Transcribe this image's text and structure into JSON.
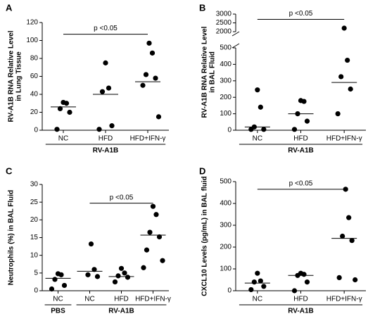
{
  "chart_data": [
    {
      "type": "strip",
      "letter": "A",
      "ylabel": [
        "RV-A1B RNA Relative Level",
        "in Lung Tissue"
      ],
      "categories": [
        "NC",
        "HFD",
        "HFD+IFN-γ"
      ],
      "groups": [
        {
          "label": "RV-A1B",
          "from": 0,
          "to": 2
        }
      ],
      "points": [
        [
          31,
          30,
          24,
          20,
          1
        ],
        [
          75,
          47,
          43,
          5,
          1
        ],
        [
          97,
          86,
          62,
          58,
          50,
          15
        ]
      ],
      "medians": [
        26,
        40,
        54
      ],
      "ylim": [
        0,
        120
      ],
      "yticks": [
        0,
        20,
        40,
        60,
        80,
        100,
        120
      ],
      "annotation": {
        "text": "p <0.05",
        "from": 0,
        "to": 2,
        "y": 107
      },
      "color": "#000000"
    },
    {
      "type": "strip",
      "letter": "B",
      "ylabel": [
        "RV-A1B RNA Relative Level",
        "in BAL Fluid"
      ],
      "categories": [
        "NC",
        "HFD",
        "HFD+IFN-γ"
      ],
      "groups": [
        {
          "label": "RV-A1B",
          "from": 0,
          "to": 2
        }
      ],
      "points": [
        [
          245,
          140,
          20,
          5,
          5
        ],
        [
          180,
          175,
          100,
          55,
          5
        ],
        [
          2200,
          425,
          325,
          250,
          100
        ]
      ],
      "medians": [
        20,
        100,
        290
      ],
      "ylim": [
        0,
        500
      ],
      "yticks": [
        0,
        100,
        200,
        300,
        400,
        500
      ],
      "ybreak": {
        "ylim": [
          2000,
          3000
        ],
        "yticks": [
          2000,
          2500,
          3000
        ]
      },
      "annotation": {
        "text": "p <0.05",
        "from": 0,
        "to": 2,
        "y": 2700
      },
      "color": "#000000"
    },
    {
      "type": "strip",
      "letter": "C",
      "ylabel": [
        "Neutrophils (%) in BAL Fluid"
      ],
      "categories": [
        "NC",
        "NC",
        "HFD",
        "HFD+IFN-γ"
      ],
      "groups": [
        {
          "label": "PBS",
          "from": 0,
          "to": 0
        },
        {
          "label": "RV-A1B",
          "from": 1,
          "to": 3
        }
      ],
      "points": [
        [
          4.8,
          4.5,
          3.2,
          1.5,
          0.5
        ],
        [
          13.2,
          6,
          4.5,
          4
        ],
        [
          6.3,
          5,
          4.2,
          3.8,
          2.5
        ],
        [
          23.8,
          21.5,
          16.5,
          15.2,
          11.5,
          8.5,
          6.5
        ]
      ],
      "medians": [
        3.5,
        5.5,
        4,
        15.7
      ],
      "ylim": [
        0,
        30
      ],
      "yticks": [
        0,
        5,
        10,
        15,
        20,
        25,
        30
      ],
      "annotation": {
        "text": "p <0.05",
        "from": 1,
        "to": 3,
        "y": 24.7
      },
      "color": "#000000"
    },
    {
      "type": "strip",
      "letter": "D",
      "ylabel": [
        "CXCL10 Levels (pg/mL) in BAL fluid"
      ],
      "categories": [
        "NC",
        "HFD",
        "HFD+IFN-γ"
      ],
      "groups": [
        {
          "label": "RV-A1B",
          "from": 0,
          "to": 2
        }
      ],
      "points": [
        [
          80,
          45,
          40,
          20,
          5
        ],
        [
          80,
          75,
          70,
          40,
          0
        ],
        [
          465,
          335,
          250,
          230,
          60,
          50
        ]
      ],
      "medians": [
        35,
        70,
        240
      ],
      "ylim": [
        0,
        500
      ],
      "yticks": [
        0,
        100,
        200,
        300,
        400,
        500
      ],
      "annotation": {
        "text": "p <0.05",
        "from": 0,
        "to": 2,
        "y": 465
      },
      "color": "#000000"
    }
  ]
}
